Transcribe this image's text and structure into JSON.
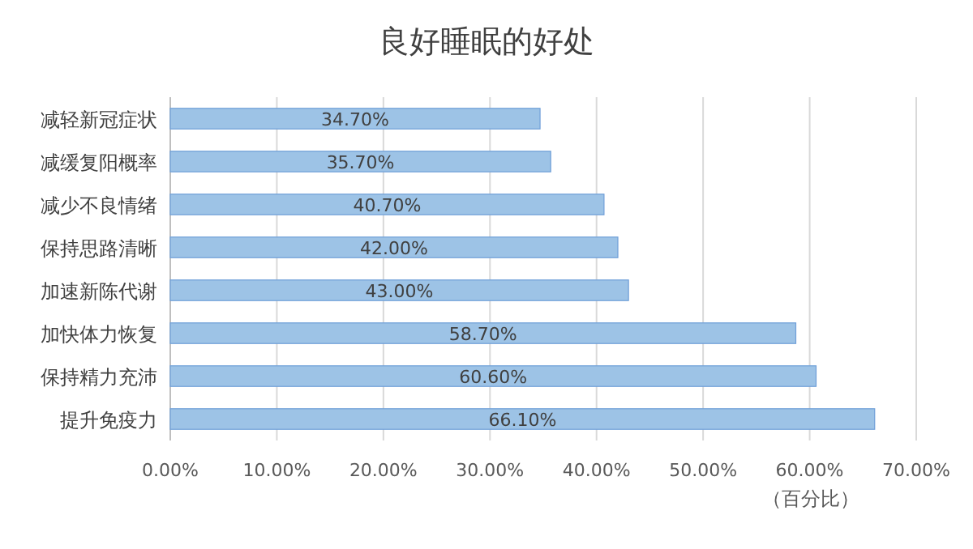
{
  "chart_data": {
    "type": "bar",
    "orientation": "horizontal",
    "title": "良好睡眠的好处",
    "xlabel": "（百分比）",
    "categories": [
      "减轻新冠症状",
      "减缓复阳概率",
      "减少不良情绪",
      "保持思路清晰",
      "加速新陈代谢",
      "加快体力恢复",
      "保持精力充沛",
      "提升免疫力"
    ],
    "values": [
      34.7,
      35.7,
      40.7,
      42.0,
      43.0,
      58.7,
      60.6,
      66.1
    ],
    "value_labels": [
      "34.70%",
      "35.70%",
      "40.70%",
      "42.00%",
      "43.00%",
      "58.70%",
      "60.60%",
      "66.10%"
    ],
    "color": "#9dc3e6",
    "xlim": [
      0,
      70
    ],
    "xticks": [
      {
        "value": 0,
        "label": "0.00%"
      },
      {
        "value": 10,
        "label": "10.00%"
      },
      {
        "value": 20,
        "label": "20.00%"
      },
      {
        "value": 30,
        "label": "30.00%"
      },
      {
        "value": 40,
        "label": "40.00%"
      },
      {
        "value": 50,
        "label": "50.00%"
      },
      {
        "value": 60,
        "label": "60.00%"
      },
      {
        "value": 70,
        "label": "70.00%"
      }
    ],
    "grid": "x"
  }
}
